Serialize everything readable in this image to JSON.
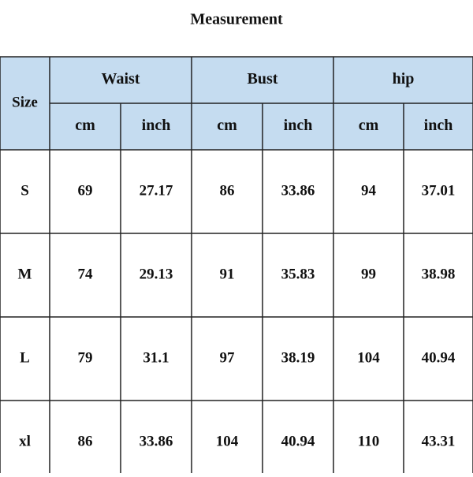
{
  "title": "Measurement",
  "table": {
    "size_header": "Size",
    "groups": [
      "Waist",
      "Bust",
      "hip"
    ],
    "units": [
      "cm",
      "inch",
      "cm",
      "inch",
      "cm",
      "inch"
    ],
    "rows": [
      [
        "S",
        "69",
        "27.17",
        "86",
        "33.86",
        "94",
        "37.01"
      ],
      [
        "M",
        "74",
        "29.13",
        "91",
        "35.83",
        "99",
        "38.98"
      ],
      [
        "L",
        "79",
        "31.1",
        "97",
        "38.19",
        "104",
        "40.94"
      ],
      [
        "xl",
        "86",
        "33.86",
        "104",
        "40.94",
        "110",
        "43.31"
      ]
    ]
  }
}
